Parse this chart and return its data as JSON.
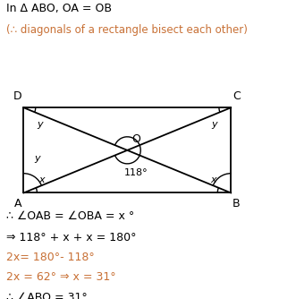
{
  "title_line1": "In Δ ABO, OA = OB",
  "title_line2": "(∴ diagonals of a rectangle bisect each other)",
  "text_color_black": "#000000",
  "text_color_orange": "#c87035",
  "math_lines": [
    "∴ ∠OAB = ∠OBA = x °",
    "⇒ 118° + x + x = 180°",
    "2x= 180°- 118°",
    "2x = 62° ⇒ x = 31°",
    "∴ ∠ABO = 31°"
  ],
  "math_colors": [
    "#000000",
    "#000000",
    "#c87035",
    "#c87035",
    "#000000"
  ],
  "angle_label": "118°",
  "A": [
    0.08,
    0.355
  ],
  "B": [
    0.78,
    0.355
  ],
  "C": [
    0.78,
    0.64
  ],
  "D": [
    0.08,
    0.64
  ]
}
